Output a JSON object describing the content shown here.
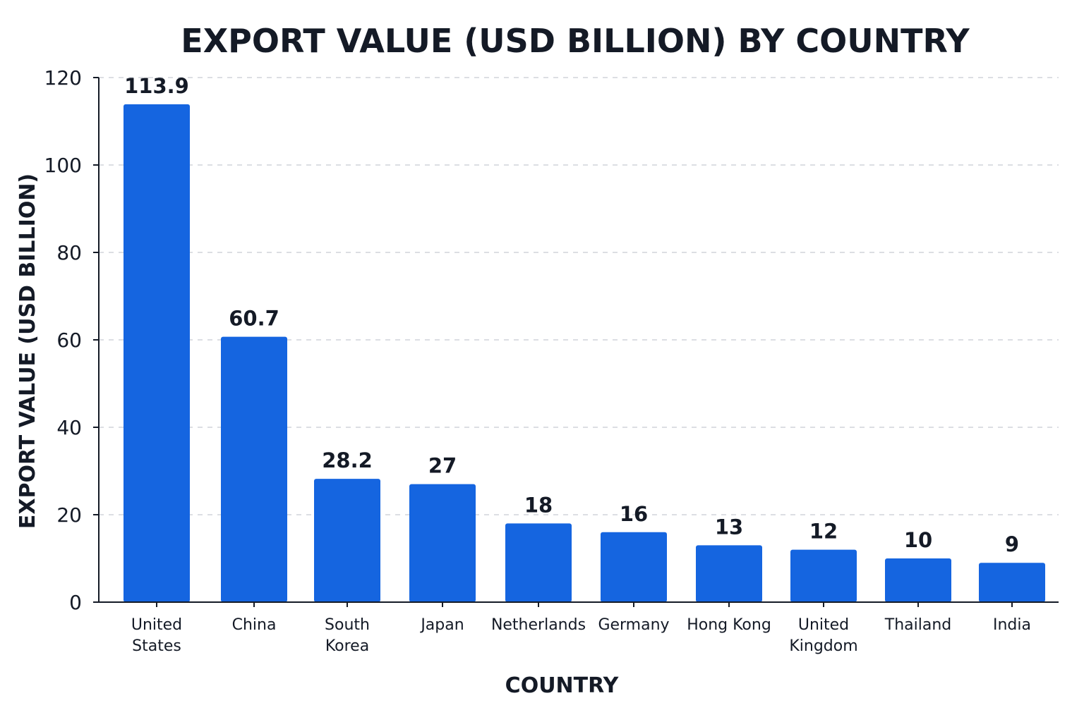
{
  "chart_data": {
    "type": "bar",
    "title": "EXPORT VALUE (USD BILLION) BY COUNTRY",
    "xlabel": "COUNTRY",
    "ylabel": "EXPORT VALUE (USD BILLION)",
    "categories": [
      [
        "United",
        "States"
      ],
      [
        "China"
      ],
      [
        "South",
        "Korea"
      ],
      [
        "Japan"
      ],
      [
        "Netherlands"
      ],
      [
        "Germany"
      ],
      [
        "Hong Kong"
      ],
      [
        "United",
        "Kingdom"
      ],
      [
        "Thailand"
      ],
      [
        "India"
      ]
    ],
    "values": [
      113.9,
      60.7,
      28.2,
      27,
      18,
      16,
      13,
      12,
      10,
      9
    ],
    "value_labels": [
      "113.9",
      "60.7",
      "28.2",
      "27",
      "18",
      "16",
      "13",
      "12",
      "10",
      "9"
    ],
    "ylim": [
      0,
      120
    ],
    "yticks": [
      0,
      20,
      40,
      60,
      80,
      100,
      120
    ],
    "grid": "horizontal dashed",
    "legend": "none",
    "bar_color": "#1565e0"
  }
}
